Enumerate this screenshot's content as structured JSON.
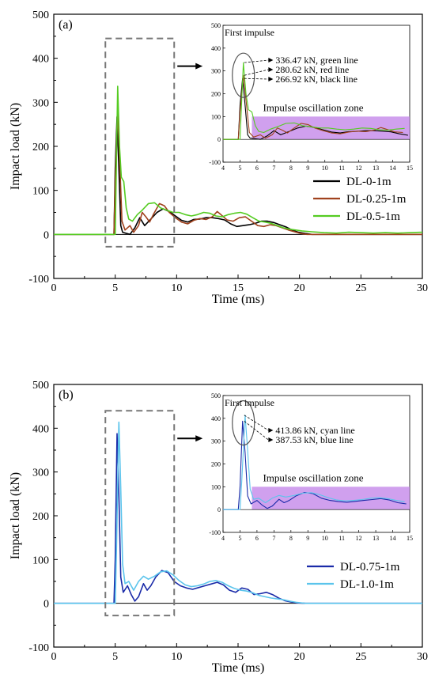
{
  "chart_data": [
    {
      "type": "line",
      "panel_label": "(a)",
      "xlabel": "Time (ms)",
      "ylabel": "Impact load (kN)",
      "xlim": [
        0,
        30
      ],
      "ylim": [
        -100,
        500
      ],
      "xticks": [
        0,
        5,
        10,
        15,
        20,
        25,
        30
      ],
      "yticks": [
        -100,
        0,
        100,
        200,
        300,
        400,
        500
      ],
      "legend_position": "middle-right",
      "series": [
        {
          "name": "DL-0-1m",
          "color": "#000000",
          "points": [
            [
              0,
              0
            ],
            [
              4.9,
              0
            ],
            [
              5.0,
              150
            ],
            [
              5.15,
              266.92
            ],
            [
              5.3,
              150
            ],
            [
              5.45,
              20
            ],
            [
              5.6,
              5
            ],
            [
              6.2,
              0
            ],
            [
              6.6,
              15
            ],
            [
              7.0,
              38
            ],
            [
              7.4,
              20
            ],
            [
              7.9,
              35
            ],
            [
              8.4,
              50
            ],
            [
              8.9,
              58
            ],
            [
              9.4,
              52
            ],
            [
              9.9,
              42
            ],
            [
              10.4,
              32
            ],
            [
              10.9,
              28
            ],
            [
              11.4,
              34
            ],
            [
              11.9,
              35
            ],
            [
              12.4,
              38
            ],
            [
              12.9,
              38
            ],
            [
              13.4,
              36
            ],
            [
              13.9,
              33
            ],
            [
              14.4,
              24
            ],
            [
              14.9,
              18
            ],
            [
              15.4,
              20
            ],
            [
              15.9,
              22
            ],
            [
              16.4,
              25
            ],
            [
              16.9,
              30
            ],
            [
              17.4,
              30
            ],
            [
              17.9,
              27
            ],
            [
              18.4,
              22
            ],
            [
              18.9,
              17
            ],
            [
              19.4,
              10
            ],
            [
              19.9,
              5
            ],
            [
              20.5,
              2
            ],
            [
              21,
              0
            ],
            [
              30,
              0
            ]
          ]
        },
        {
          "name": "DL-0.25-1m",
          "color": "#A0421E",
          "points": [
            [
              0,
              0
            ],
            [
              4.9,
              0
            ],
            [
              5.0,
              120
            ],
            [
              5.2,
              280.62
            ],
            [
              5.4,
              140
            ],
            [
              5.55,
              30
            ],
            [
              5.8,
              10
            ],
            [
              6.2,
              20
            ],
            [
              6.5,
              5
            ],
            [
              6.9,
              20
            ],
            [
              7.2,
              50
            ],
            [
              7.5,
              40
            ],
            [
              7.8,
              28
            ],
            [
              8.1,
              45
            ],
            [
              8.6,
              70
            ],
            [
              9.0,
              65
            ],
            [
              9.4,
              50
            ],
            [
              9.9,
              38
            ],
            [
              10.4,
              28
            ],
            [
              10.9,
              24
            ],
            [
              11.4,
              32
            ],
            [
              11.9,
              36
            ],
            [
              12.4,
              34
            ],
            [
              12.9,
              40
            ],
            [
              13.3,
              52
            ],
            [
              13.6,
              45
            ],
            [
              14.1,
              33
            ],
            [
              14.6,
              30
            ],
            [
              15.1,
              38
            ],
            [
              15.6,
              40
            ],
            [
              16.1,
              30
            ],
            [
              16.6,
              20
            ],
            [
              17.1,
              18
            ],
            [
              17.6,
              22
            ],
            [
              18.1,
              20
            ],
            [
              18.6,
              15
            ],
            [
              19.1,
              10
            ],
            [
              19.6,
              6
            ],
            [
              20.1,
              2
            ],
            [
              20.6,
              0
            ],
            [
              30,
              0
            ]
          ]
        },
        {
          "name": "DL-0.5-1m",
          "color": "#55CC22",
          "points": [
            [
              0,
              0
            ],
            [
              5.0,
              0
            ],
            [
              5.05,
              80
            ],
            [
              5.2,
              336.47
            ],
            [
              5.35,
              200
            ],
            [
              5.5,
              130
            ],
            [
              5.7,
              120
            ],
            [
              5.9,
              60
            ],
            [
              6.1,
              35
            ],
            [
              6.4,
              30
            ],
            [
              6.8,
              45
            ],
            [
              7.2,
              55
            ],
            [
              7.7,
              70
            ],
            [
              8.2,
              72
            ],
            [
              8.7,
              60
            ],
            [
              9.2,
              55
            ],
            [
              9.7,
              50
            ],
            [
              10.2,
              50
            ],
            [
              10.7,
              45
            ],
            [
              11.2,
              42
            ],
            [
              11.7,
              45
            ],
            [
              12.2,
              50
            ],
            [
              12.7,
              48
            ],
            [
              13.2,
              42
            ],
            [
              13.7,
              40
            ],
            [
              14.2,
              45
            ],
            [
              14.7,
              48
            ],
            [
              15.2,
              50
            ],
            [
              15.7,
              46
            ],
            [
              16.2,
              38
            ],
            [
              16.7,
              30
            ],
            [
              17.2,
              28
            ],
            [
              17.7,
              25
            ],
            [
              18.2,
              20
            ],
            [
              18.7,
              15
            ],
            [
              19.2,
              12
            ],
            [
              19.7,
              10
            ],
            [
              20.2,
              8
            ],
            [
              21,
              6
            ],
            [
              22,
              4
            ],
            [
              23,
              3
            ],
            [
              24,
              5
            ],
            [
              25,
              4
            ],
            [
              26,
              3
            ],
            [
              27,
              4
            ],
            [
              28,
              3
            ],
            [
              29,
              4
            ],
            [
              30,
              5
            ]
          ]
        }
      ],
      "inset": {
        "title": "First impulse",
        "xlim": [
          4,
          15
        ],
        "ylim": [
          -100,
          500
        ],
        "xticks": [
          4,
          5,
          6,
          7,
          8,
          9,
          10,
          11,
          12,
          13,
          14,
          15
        ],
        "yticks": [
          -100,
          0,
          100,
          200,
          300,
          400,
          500
        ],
        "zone_label": "Impulse oscillation zone",
        "zone_x": [
          5.7,
          15
        ],
        "zone_y": [
          0,
          100
        ],
        "zone_color": "#C080E8",
        "peak_annotations": [
          {
            "text": "336.47 kN, green line",
            "value": 336.47
          },
          {
            "text": "280.62 kN, red line",
            "value": 280.62
          },
          {
            "text": "266.92 kN, black line",
            "value": 266.92
          }
        ]
      }
    },
    {
      "type": "line",
      "panel_label": "(b)",
      "xlabel": "Time (ms)",
      "ylabel": "Impact load (kN)",
      "xlim": [
        0,
        30
      ],
      "ylim": [
        -100,
        500
      ],
      "xticks": [
        0,
        5,
        10,
        15,
        20,
        25,
        30
      ],
      "yticks": [
        -100,
        0,
        100,
        200,
        300,
        400,
        500
      ],
      "legend_position": "lower-right",
      "series": [
        {
          "name": "DL-0.75-1m",
          "color": "#1A2AA8",
          "points": [
            [
              0,
              0
            ],
            [
              4.9,
              0
            ],
            [
              5.0,
              100
            ],
            [
              5.15,
              387.53
            ],
            [
              5.3,
              250
            ],
            [
              5.45,
              60
            ],
            [
              5.65,
              25
            ],
            [
              6.0,
              40
            ],
            [
              6.3,
              20
            ],
            [
              6.6,
              5
            ],
            [
              6.9,
              15
            ],
            [
              7.3,
              45
            ],
            [
              7.6,
              30
            ],
            [
              7.9,
              40
            ],
            [
              8.3,
              60
            ],
            [
              8.8,
              75
            ],
            [
              9.3,
              70
            ],
            [
              9.8,
              50
            ],
            [
              10.3,
              40
            ],
            [
              10.8,
              35
            ],
            [
              11.3,
              32
            ],
            [
              11.8,
              36
            ],
            [
              12.3,
              40
            ],
            [
              12.8,
              44
            ],
            [
              13.3,
              48
            ],
            [
              13.8,
              42
            ],
            [
              14.3,
              30
            ],
            [
              14.8,
              25
            ],
            [
              15.3,
              35
            ],
            [
              15.8,
              32
            ],
            [
              16.3,
              20
            ],
            [
              16.8,
              22
            ],
            [
              17.3,
              25
            ],
            [
              17.8,
              20
            ],
            [
              18.3,
              12
            ],
            [
              18.8,
              6
            ],
            [
              19.3,
              3
            ],
            [
              19.8,
              1
            ],
            [
              20.5,
              0
            ],
            [
              30,
              0
            ]
          ]
        },
        {
          "name": "DL-1.0-1m",
          "color": "#5BC4EC",
          "points": [
            [
              0,
              0
            ],
            [
              5.0,
              0
            ],
            [
              5.1,
              120
            ],
            [
              5.3,
              413.86
            ],
            [
              5.45,
              260
            ],
            [
              5.6,
              90
            ],
            [
              5.8,
              45
            ],
            [
              6.1,
              50
            ],
            [
              6.5,
              30
            ],
            [
              6.9,
              50
            ],
            [
              7.3,
              62
            ],
            [
              7.7,
              55
            ],
            [
              8.2,
              62
            ],
            [
              8.7,
              72
            ],
            [
              9.2,
              74
            ],
            [
              9.7,
              65
            ],
            [
              10.2,
              52
            ],
            [
              10.7,
              42
            ],
            [
              11.2,
              38
            ],
            [
              11.7,
              40
            ],
            [
              12.2,
              44
            ],
            [
              12.7,
              50
            ],
            [
              13.2,
              52
            ],
            [
              13.7,
              48
            ],
            [
              14.2,
              40
            ],
            [
              14.7,
              34
            ],
            [
              15.2,
              30
            ],
            [
              15.7,
              28
            ],
            [
              16.2,
              24
            ],
            [
              16.7,
              18
            ],
            [
              17.2,
              15
            ],
            [
              17.7,
              12
            ],
            [
              18.2,
              10
            ],
            [
              18.7,
              8
            ],
            [
              19.2,
              5
            ],
            [
              19.8,
              2
            ],
            [
              20.5,
              0
            ],
            [
              30,
              0
            ]
          ]
        }
      ],
      "inset": {
        "title": "First impulse",
        "xlim": [
          4,
          15
        ],
        "ylim": [
          -100,
          500
        ],
        "xticks": [
          4,
          5,
          6,
          7,
          8,
          9,
          10,
          11,
          12,
          13,
          14,
          15
        ],
        "yticks": [
          -100,
          0,
          100,
          200,
          300,
          400,
          500
        ],
        "zone_label": "Impulse oscillation zone",
        "zone_x": [
          5.7,
          15
        ],
        "zone_y": [
          0,
          100
        ],
        "zone_color": "#C080E8",
        "peak_annotations": [
          {
            "text": "413.86 kN, cyan line",
            "value": 413.86
          },
          {
            "text": "387.53 kN, blue line",
            "value": 387.53
          }
        ]
      }
    }
  ]
}
